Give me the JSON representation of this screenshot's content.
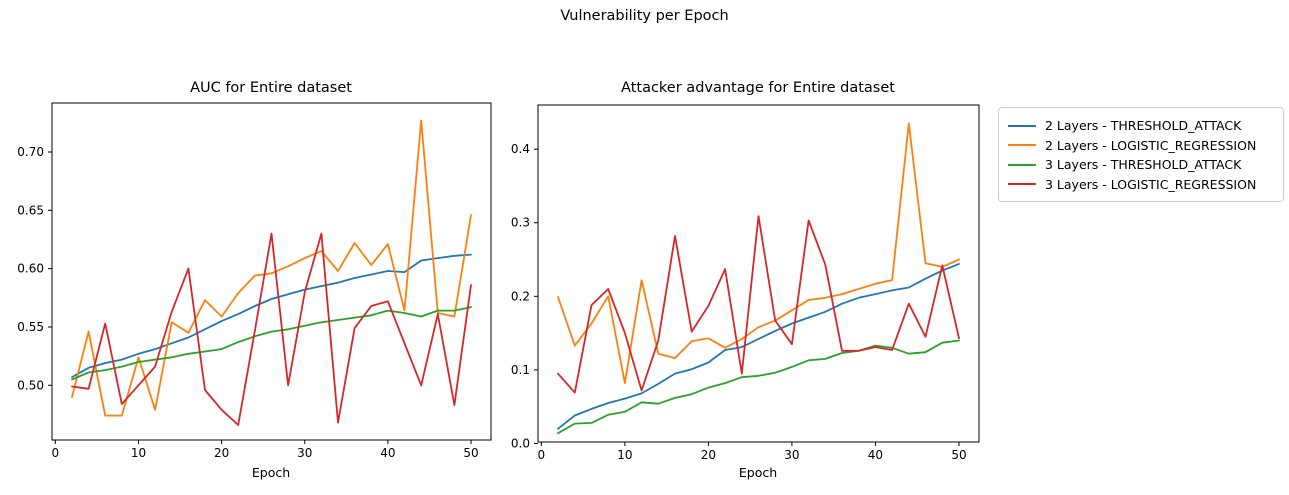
{
  "figure": {
    "title": "Vulnerability per Epoch",
    "background": "#ffffff",
    "text_color": "#000000",
    "spine_color": "#000000"
  },
  "legend": {
    "position": "upper right, outside axes",
    "items": [
      {
        "label": "2 Layers - THRESHOLD_ATTACK",
        "color": "#1f77b4"
      },
      {
        "label": "2 Layers - LOGISTIC_REGRESSION",
        "color": "#ff7f0e"
      },
      {
        "label": "3 Layers - THRESHOLD_ATTACK",
        "color": "#2ca02c"
      },
      {
        "label": "3 Layers - LOGISTIC_REGRESSION",
        "color": "#d62728"
      }
    ]
  },
  "chart_data": [
    {
      "type": "line",
      "title": "AUC for Entire dataset",
      "xlabel": "Epoch",
      "ylabel": "",
      "grid": false,
      "xlim": [
        -0.4,
        52.4
      ],
      "ylim": [
        0.4531,
        0.742
      ],
      "xticks": {
        "values": [
          0,
          10,
          20,
          30,
          40,
          50
        ],
        "labels": [
          "0",
          "10",
          "20",
          "30",
          "40",
          "50"
        ]
      },
      "yticks": {
        "values": [
          0.5,
          0.55,
          0.6,
          0.65,
          0.7
        ],
        "labels": [
          "0.50",
          "0.55",
          "0.60",
          "0.65",
          "0.70"
        ]
      },
      "x": [
        2,
        4,
        6,
        8,
        10,
        12,
        14,
        16,
        18,
        20,
        22,
        24,
        26,
        28,
        30,
        32,
        34,
        36,
        38,
        40,
        42,
        44,
        46,
        48,
        50
      ],
      "series": [
        {
          "name": "2 Layers - THRESHOLD_ATTACK",
          "color": "#1f77b4",
          "values": [
            0.507,
            0.515,
            0.519,
            0.522,
            0.527,
            0.531,
            0.536,
            0.541,
            0.548,
            0.555,
            0.561,
            0.568,
            0.574,
            0.578,
            0.582,
            0.585,
            0.588,
            0.592,
            0.595,
            0.598,
            0.597,
            0.607,
            0.609,
            0.611,
            0.612
          ]
        },
        {
          "name": "2 Layers - LOGISTIC_REGRESSION",
          "color": "#ff7f0e",
          "values": [
            0.49,
            0.546,
            0.474,
            0.474,
            0.524,
            0.479,
            0.554,
            0.545,
            0.573,
            0.559,
            0.579,
            0.594,
            0.596,
            0.602,
            0.609,
            0.615,
            0.598,
            0.622,
            0.603,
            0.621,
            0.564,
            0.727,
            0.562,
            0.559,
            0.646
          ]
        },
        {
          "name": "3 Layers - THRESHOLD_ATTACK",
          "color": "#2ca02c",
          "values": [
            0.505,
            0.511,
            0.513,
            0.516,
            0.52,
            0.522,
            0.524,
            0.527,
            0.529,
            0.531,
            0.537,
            0.542,
            0.546,
            0.548,
            0.551,
            0.554,
            0.556,
            0.558,
            0.56,
            0.564,
            0.562,
            0.559,
            0.564,
            0.564,
            0.567
          ]
        },
        {
          "name": "3 Layers - LOGISTIC_REGRESSION",
          "color": "#d62728",
          "values": [
            0.499,
            0.497,
            0.553,
            0.484,
            0.5,
            0.516,
            0.563,
            0.6,
            0.496,
            0.479,
            0.466,
            0.547,
            0.63,
            0.5,
            0.58,
            0.63,
            0.468,
            0.549,
            0.568,
            0.572,
            0.536,
            0.5,
            0.561,
            0.483,
            0.586
          ]
        }
      ]
    },
    {
      "type": "line",
      "title": "Attacker advantage for Entire dataset",
      "xlabel": "Epoch",
      "ylabel": "",
      "grid": false,
      "xlim": [
        -0.4,
        52.4
      ],
      "ylim": [
        0.002,
        0.46
      ],
      "xticks": {
        "values": [
          0,
          10,
          20,
          30,
          40,
          50
        ],
        "labels": [
          "0",
          "10",
          "20",
          "30",
          "40",
          "50"
        ]
      },
      "yticks": {
        "values": [
          0.0,
          0.1,
          0.2,
          0.3,
          0.4
        ],
        "labels": [
          "0.0",
          "0.1",
          "0.2",
          "0.3",
          "0.4"
        ]
      },
      "x": [
        2,
        4,
        6,
        8,
        10,
        12,
        14,
        16,
        18,
        20,
        22,
        24,
        26,
        28,
        30,
        32,
        34,
        36,
        38,
        40,
        42,
        44,
        46,
        48,
        50
      ],
      "series": [
        {
          "name": "2 Layers - THRESHOLD_ATTACK",
          "color": "#1f77b4",
          "values": [
            0.02,
            0.038,
            0.047,
            0.055,
            0.061,
            0.068,
            0.081,
            0.095,
            0.101,
            0.11,
            0.127,
            0.131,
            0.142,
            0.153,
            0.163,
            0.171,
            0.179,
            0.19,
            0.198,
            0.203,
            0.208,
            0.212,
            0.224,
            0.235,
            0.244
          ]
        },
        {
          "name": "2 Layers - LOGISTIC_REGRESSION",
          "color": "#ff7f0e",
          "values": [
            0.199,
            0.133,
            0.163,
            0.2,
            0.082,
            0.222,
            0.122,
            0.116,
            0.139,
            0.143,
            0.13,
            0.142,
            0.158,
            0.167,
            0.181,
            0.195,
            0.198,
            0.203,
            0.21,
            0.217,
            0.222,
            0.435,
            0.245,
            0.24,
            0.25
          ]
        },
        {
          "name": "3 Layers - THRESHOLD_ATTACK",
          "color": "#2ca02c",
          "values": [
            0.014,
            0.027,
            0.028,
            0.039,
            0.043,
            0.056,
            0.054,
            0.062,
            0.067,
            0.076,
            0.082,
            0.09,
            0.092,
            0.096,
            0.104,
            0.113,
            0.115,
            0.123,
            0.126,
            0.133,
            0.13,
            0.122,
            0.124,
            0.137,
            0.14
          ]
        },
        {
          "name": "3 Layers - LOGISTIC_REGRESSION",
          "color": "#d62728",
          "values": [
            0.095,
            0.069,
            0.188,
            0.21,
            0.15,
            0.072,
            0.14,
            0.282,
            0.152,
            0.187,
            0.237,
            0.095,
            0.309,
            0.167,
            0.135,
            0.303,
            0.243,
            0.126,
            0.126,
            0.131,
            0.127,
            0.19,
            0.145,
            0.242,
            0.143
          ]
        }
      ]
    }
  ]
}
